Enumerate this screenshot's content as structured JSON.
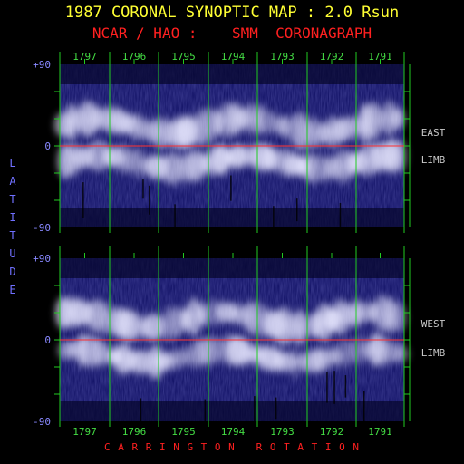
{
  "title": "1987 CORONAL SYNOPTIC MAP : 2.0 Rsun",
  "subtitle": "NCAR / HAO :    SMM  CORONAGRAPH",
  "y_axis_label": "LATITUDE",
  "x_axis_label": "C A R R I N G T O N   R O T A T I O N",
  "colors": {
    "title": "#ffff33",
    "subtitle": "#ff2020",
    "axis_label": "#7070ff",
    "grid": "#22cc22",
    "equator": "#ff3030",
    "rotation_label": "#44dd44",
    "tick_label": "#8888ff",
    "side_label": "#c8c8c8",
    "map_base": "#0c0c60",
    "corona_bright": "#e8e8ff"
  },
  "chart_data": [
    {
      "type": "heatmap",
      "panel": "east",
      "side_label": [
        "EAST",
        "LIMB"
      ],
      "rotations": [
        "1797",
        "1796",
        "1795",
        "1794",
        "1793",
        "1792",
        "1791"
      ],
      "ylim": [
        -90,
        90
      ],
      "yticks": [
        "+90",
        "0",
        "-90"
      ],
      "equator_line": 0
    },
    {
      "type": "heatmap",
      "panel": "west",
      "side_label": [
        "WEST",
        "LIMB"
      ],
      "rotations": [
        "1797",
        "1796",
        "1795",
        "1794",
        "1793",
        "1792",
        "1791"
      ],
      "ylim": [
        -90,
        90
      ],
      "yticks": [
        "+90",
        "0",
        "-90"
      ],
      "equator_line": 0
    }
  ]
}
